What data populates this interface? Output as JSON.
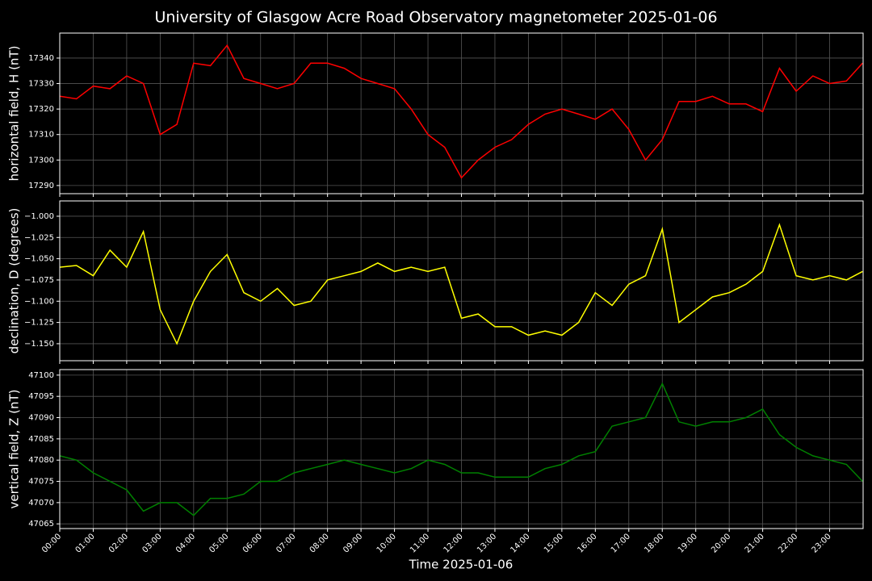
{
  "title": "University of Glasgow Acre Road Observatory magnetometer 2025-01-06",
  "xlabel": "Time 2025-01-06",
  "x": [
    "00:00",
    "00:30",
    "01:00",
    "01:30",
    "02:00",
    "02:30",
    "03:00",
    "03:30",
    "04:00",
    "04:30",
    "05:00",
    "05:30",
    "06:00",
    "06:30",
    "07:00",
    "07:30",
    "08:00",
    "08:30",
    "09:00",
    "09:30",
    "10:00",
    "10:30",
    "11:00",
    "11:30",
    "12:00",
    "12:30",
    "13:00",
    "13:30",
    "14:00",
    "14:30",
    "15:00",
    "15:30",
    "16:00",
    "16:30",
    "17:00",
    "17:30",
    "18:00",
    "18:30",
    "19:00",
    "19:30",
    "20:00",
    "20:30",
    "21:00",
    "21:30",
    "22:00",
    "22:30",
    "23:00",
    "23:30",
    "23:59"
  ],
  "xlim": [
    "00:00",
    "24:00"
  ],
  "xticks": [
    "00:00",
    "01:00",
    "02:00",
    "03:00",
    "04:00",
    "05:00",
    "06:00",
    "07:00",
    "08:00",
    "09:00",
    "10:00",
    "11:00",
    "12:00",
    "13:00",
    "14:00",
    "15:00",
    "16:00",
    "17:00",
    "18:00",
    "19:00",
    "20:00",
    "21:00",
    "22:00",
    "23:00"
  ],
  "grid": true,
  "chart_data": [
    {
      "type": "line",
      "ylabel": "horizontal field, H (nT)",
      "color": "#ff0000",
      "values": [
        17325,
        17324,
        17329,
        17328,
        17333,
        17330,
        17310,
        17314,
        17338,
        17337,
        17345,
        17332,
        17330,
        17328,
        17330,
        17338,
        17338,
        17336,
        17332,
        17330,
        17328,
        17320,
        17310,
        17305,
        17293,
        17300,
        17305,
        17308,
        17314,
        17318,
        17320,
        17318,
        17316,
        17320,
        17312,
        17300,
        17308,
        17323,
        17323,
        17325,
        17322,
        17322,
        17319,
        17336,
        17327,
        17333,
        17330,
        17331,
        17338
      ],
      "ylim": [
        17286.8,
        17349.8
      ],
      "yticks": [
        17290,
        17300,
        17310,
        17320,
        17330,
        17340
      ]
    },
    {
      "type": "line",
      "ylabel": "declination, D (degrees)",
      "color": "#ffff00",
      "values": [
        -1.06,
        -1.058,
        -1.07,
        -1.04,
        -1.06,
        -1.018,
        -1.11,
        -1.15,
        -1.1,
        -1.065,
        -1.045,
        -1.09,
        -1.1,
        -1.085,
        -1.105,
        -1.1,
        -1.075,
        -1.07,
        -1.065,
        -1.055,
        -1.065,
        -1.06,
        -1.065,
        -1.06,
        -1.12,
        -1.115,
        -1.13,
        -1.13,
        -1.14,
        -1.135,
        -1.14,
        -1.125,
        -1.09,
        -1.105,
        -1.08,
        -1.07,
        -1.015,
        -1.125,
        -1.11,
        -1.095,
        -1.09,
        -1.08,
        -1.065,
        -1.01,
        -1.07,
        -1.075,
        -1.07,
        -1.075,
        -1.065
      ],
      "ylim": [
        -1.17,
        -0.982
      ],
      "yticks": [
        {
          "value": -1.15,
          "label": "−1.150"
        },
        {
          "value": -1.125,
          "label": "−1.125"
        },
        {
          "value": -1.1,
          "label": "−1.100"
        },
        {
          "value": -1.075,
          "label": "−1.075"
        },
        {
          "value": -1.05,
          "label": "−1.050"
        },
        {
          "value": -1.025,
          "label": "−1.025"
        },
        {
          "value": -1.0,
          "label": "−1.000"
        }
      ]
    },
    {
      "type": "line",
      "ylabel": "vertical field, Z (nT)",
      "color": "#008000",
      "values": [
        47081,
        47080,
        47077,
        47075,
        47073,
        47068,
        47070,
        47070,
        47067,
        47071,
        47071,
        47072,
        47075,
        47075,
        47077,
        47078,
        47079,
        47080,
        47079,
        47078,
        47077,
        47078,
        47080,
        47079,
        47077,
        47077,
        47076,
        47076,
        47076,
        47078,
        47079,
        47081,
        47082,
        47088,
        47089,
        47090,
        47098,
        47089,
        47088,
        47089,
        47089,
        47090,
        47092,
        47086,
        47083,
        47081,
        47080,
        47079,
        47075
      ],
      "ylim": [
        47063.9,
        47101.3
      ],
      "yticks": [
        47065,
        47070,
        47075,
        47080,
        47085,
        47090,
        47095,
        47100
      ]
    }
  ]
}
